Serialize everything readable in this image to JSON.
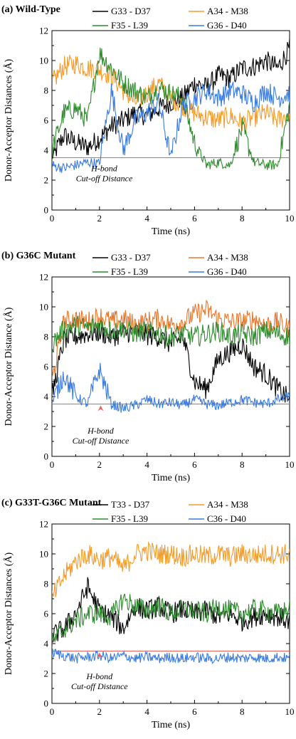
{
  "chart_data": [
    {
      "type": "line",
      "panel_label": "(a)",
      "title": "Wild-Type",
      "xlabel": "Time (ns)",
      "ylabel": "Donor-Acceptor Distances (Å)",
      "xlim": [
        0,
        10
      ],
      "ylim": [
        0,
        12
      ],
      "xticks": [
        0,
        2,
        4,
        6,
        8,
        10
      ],
      "yticks": [
        0,
        2,
        4,
        6,
        8,
        10,
        12
      ],
      "grid": false,
      "legend_position": "top",
      "cutoff": {
        "value": 3.5,
        "label_line1": "H-bond",
        "label_line2": "Cut-off Distance",
        "color": "#e8605a",
        "label_x": 2.2,
        "label_y": 2.6,
        "arrow": false
      },
      "series": [
        {
          "name": "G33 - D37",
          "color": "#000000",
          "x": [
            0,
            0.5,
            1,
            1.5,
            2,
            2.5,
            3,
            3.5,
            4,
            4.5,
            5,
            5.5,
            6,
            6.5,
            7,
            7.5,
            8,
            8.5,
            9,
            9.5,
            10
          ],
          "y": [
            3.5,
            5.0,
            4.5,
            4.2,
            4.8,
            5.6,
            6.0,
            6.5,
            6.3,
            6.8,
            7.2,
            7.5,
            8.5,
            8.2,
            9.0,
            8.8,
            9.5,
            9.6,
            10.0,
            9.5,
            10.8
          ]
        },
        {
          "name": "A34 - M38",
          "color": "#f39c2a",
          "x": [
            0,
            0.5,
            1,
            1.5,
            2,
            2.5,
            3,
            3.5,
            4,
            4.5,
            5,
            5.5,
            6,
            6.5,
            7,
            7.5,
            8,
            8.5,
            9,
            9.5,
            10
          ],
          "y": [
            8.5,
            9.6,
            9.8,
            9.5,
            9.4,
            9.0,
            8.0,
            7.2,
            7.8,
            8.5,
            7.5,
            7.0,
            6.5,
            6.2,
            6.0,
            6.3,
            5.8,
            6.2,
            6.5,
            6.0,
            6.4
          ]
        },
        {
          "name": "F35 - L39",
          "color": "#2e8b2e",
          "x": [
            0,
            0.5,
            1,
            1.5,
            2,
            2.5,
            3,
            3.5,
            4,
            4.5,
            5,
            5.5,
            6,
            6.5,
            7,
            7.5,
            8,
            8.5,
            9,
            9.5,
            10
          ],
          "y": [
            4.0,
            6.5,
            6.8,
            6.0,
            10.5,
            9.5,
            8.5,
            8.0,
            7.5,
            8.2,
            7.8,
            7.5,
            4.5,
            3.0,
            3.2,
            3.0,
            5.5,
            3.2,
            3.0,
            3.0,
            7.0
          ]
        },
        {
          "name": "G36 - D40",
          "color": "#3a7be0",
          "x": [
            0,
            0.5,
            1,
            1.5,
            2,
            2.5,
            3,
            3.5,
            4,
            4.5,
            5,
            5.5,
            6,
            6.5,
            7,
            7.5,
            8,
            8.5,
            9,
            9.5,
            10
          ],
          "y": [
            3.0,
            2.8,
            3.0,
            3.2,
            3.1,
            8.0,
            4.0,
            6.0,
            6.5,
            7.2,
            3.5,
            7.0,
            7.5,
            8.0,
            7.5,
            8.0,
            7.8,
            7.2,
            8.0,
            7.5,
            7.8
          ]
        }
      ]
    },
    {
      "type": "line",
      "panel_label": "(b)",
      "title": "G36C Mutant",
      "xlabel": "Time (ns)",
      "ylabel": "Donor-Acceptor Distance (Å)",
      "xlim": [
        0,
        10
      ],
      "ylim": [
        0,
        12
      ],
      "xticks": [
        0,
        2,
        4,
        6,
        8,
        10
      ],
      "yticks": [
        0,
        2,
        4,
        6,
        8,
        10,
        12
      ],
      "grid": false,
      "legend_position": "top",
      "cutoff": {
        "value": 3.5,
        "label_line1": "H-bond",
        "label_line2": "Cut-off Distance",
        "color": "#e8605a",
        "label_x": 2.05,
        "label_y": 2.1,
        "arrow": true
      },
      "series": [
        {
          "name": "G33 - D37",
          "color": "#000000",
          "x": [
            0,
            0.5,
            1,
            1.5,
            2,
            2.5,
            3,
            3.5,
            4,
            4.5,
            5,
            5.5,
            6,
            6.5,
            7,
            7.5,
            8,
            8.5,
            9,
            9.5,
            10
          ],
          "y": [
            4.0,
            7.8,
            8.0,
            8.2,
            8.3,
            8.0,
            8.2,
            8.4,
            8.1,
            8.0,
            7.5,
            8.0,
            5.0,
            4.5,
            6.5,
            7.0,
            7.5,
            6.0,
            5.5,
            4.5,
            3.8
          ]
        },
        {
          "name": "A34 - M38",
          "color": "#e8762a",
          "x": [
            0,
            0.5,
            1,
            1.5,
            2,
            2.5,
            3,
            3.5,
            4,
            4.5,
            5,
            5.5,
            6,
            6.5,
            7,
            7.5,
            8,
            8.5,
            9,
            9.5,
            10
          ],
          "y": [
            5.0,
            9.0,
            9.2,
            9.0,
            9.4,
            9.0,
            9.2,
            8.8,
            9.0,
            9.2,
            8.8,
            9.0,
            9.5,
            9.8,
            9.2,
            9.0,
            9.0,
            9.2,
            8.8,
            9.0,
            8.5
          ]
        },
        {
          "name": "F35 - L39",
          "color": "#2e8b2e",
          "x": [
            0,
            0.5,
            1,
            1.5,
            2,
            2.5,
            3,
            3.5,
            4,
            4.5,
            5,
            5.5,
            6,
            6.5,
            7,
            7.5,
            8,
            8.5,
            9,
            9.5,
            10
          ],
          "y": [
            7.5,
            8.5,
            8.8,
            8.6,
            8.8,
            8.4,
            8.6,
            8.2,
            8.4,
            8.2,
            8.0,
            8.2,
            8.0,
            8.2,
            8.4,
            8.0,
            8.2,
            8.0,
            8.4,
            8.2,
            8.0
          ]
        },
        {
          "name": "G36 - D40",
          "color": "#3a7be0",
          "x": [
            0,
            0.5,
            1,
            1.5,
            2,
            2.5,
            3,
            3.5,
            4,
            4.5,
            5,
            5.5,
            6,
            6.5,
            7,
            7.5,
            8,
            8.5,
            9,
            9.5,
            10
          ],
          "y": [
            3.5,
            5.5,
            4.0,
            3.5,
            5.8,
            3.5,
            3.2,
            3.4,
            3.8,
            3.5,
            3.6,
            3.4,
            3.8,
            3.5,
            3.4,
            3.6,
            3.8,
            3.6,
            3.5,
            3.8,
            4.0
          ]
        }
      ]
    },
    {
      "type": "line",
      "panel_label": "(c)",
      "title": "G33T-G36C Mutant",
      "xlabel": "Time (ns)",
      "ylabel": "Donor-Acceptor Distances (Å)",
      "xlim": [
        0,
        10
      ],
      "ylim": [
        0,
        12
      ],
      "xticks": [
        0,
        2,
        4,
        6,
        8,
        10
      ],
      "yticks": [
        0,
        2,
        4,
        6,
        8,
        10,
        12
      ],
      "grid": false,
      "legend_position": "top",
      "cutoff": {
        "value": 3.5,
        "label_line1": "H-bond",
        "label_line2": "Cut-off Distance",
        "color": "#e8605a",
        "label_x": 2.0,
        "label_y": 2.2,
        "arrow": true
      },
      "series": [
        {
          "name": "T33 - D37",
          "color": "#000000",
          "x": [
            0,
            0.5,
            1,
            1.5,
            2,
            2.5,
            3,
            3.5,
            4,
            4.5,
            5,
            5.5,
            6,
            6.5,
            7,
            7.5,
            8,
            8.5,
            9,
            9.5,
            10
          ],
          "y": [
            4.5,
            5.0,
            6.0,
            7.8,
            6.2,
            5.8,
            5.0,
            6.5,
            6.2,
            6.5,
            6.0,
            6.3,
            6.0,
            6.2,
            5.8,
            6.0,
            5.5,
            5.8,
            6.0,
            5.8,
            5.5
          ]
        },
        {
          "name": "A34 - M38",
          "color": "#f39c2a",
          "x": [
            0,
            0.5,
            1,
            1.5,
            2,
            2.5,
            3,
            3.5,
            4,
            4.5,
            5,
            5.5,
            6,
            6.5,
            7,
            7.5,
            8,
            8.5,
            9,
            9.5,
            10
          ],
          "y": [
            7.0,
            8.5,
            9.5,
            10.0,
            9.6,
            9.8,
            9.0,
            10.0,
            10.2,
            10.0,
            10.0,
            9.8,
            10.0,
            9.8,
            10.0,
            9.8,
            10.0,
            9.9,
            10.0,
            10.0,
            10.0
          ]
        },
        {
          "name": "F35 - L39",
          "color": "#2e8b2e",
          "x": [
            0,
            0.5,
            1,
            1.5,
            2,
            2.5,
            3,
            3.5,
            4,
            4.5,
            5,
            5.5,
            6,
            6.5,
            7,
            7.5,
            8,
            8.5,
            9,
            9.5,
            10
          ],
          "y": [
            4.0,
            5.0,
            5.5,
            6.0,
            6.0,
            5.8,
            7.0,
            6.5,
            6.2,
            6.5,
            6.0,
            6.3,
            6.2,
            6.0,
            6.5,
            6.2,
            6.0,
            6.3,
            6.2,
            6.0,
            6.3
          ]
        },
        {
          "name": "C36 - D40",
          "color": "#3a7be0",
          "x": [
            0,
            0.5,
            1,
            1.5,
            2,
            2.5,
            3,
            3.5,
            4,
            4.5,
            5,
            5.5,
            6,
            6.5,
            7,
            7.5,
            8,
            8.5,
            9,
            9.5,
            10
          ],
          "y": [
            3.4,
            3.2,
            3.0,
            3.1,
            3.2,
            3.0,
            3.2,
            3.0,
            3.1,
            3.0,
            3.1,
            3.0,
            3.1,
            3.0,
            3.0,
            3.1,
            3.0,
            3.1,
            3.0,
            3.1,
            3.0
          ]
        }
      ]
    }
  ]
}
